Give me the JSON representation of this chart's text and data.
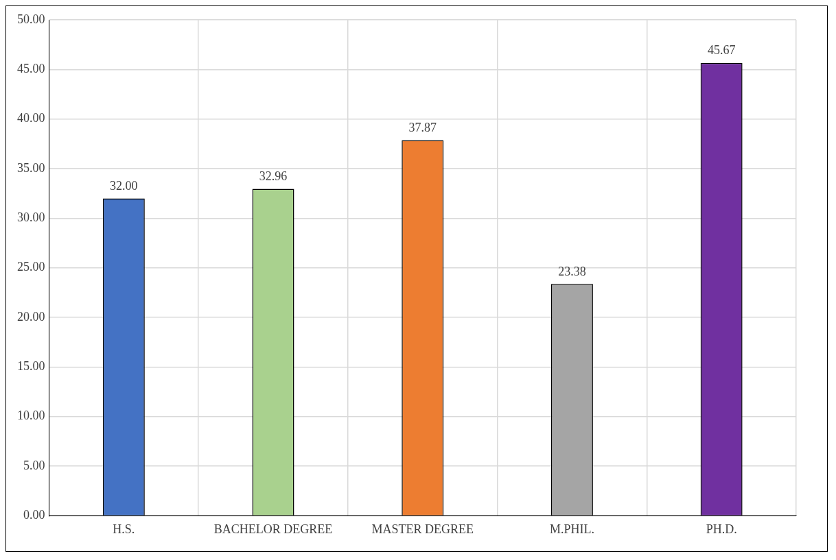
{
  "chart_data": {
    "type": "bar",
    "categories": [
      "H.S.",
      "BACHELOR DEGREE",
      "MASTER DEGREE",
      "M.PHIL.",
      "PH.D."
    ],
    "values": [
      32.0,
      32.96,
      37.87,
      23.38,
      45.67
    ],
    "colors": [
      "#4472c4",
      "#a9d18e",
      "#ed7d31",
      "#a5a5a5",
      "#7030a0"
    ],
    "ylim": [
      0,
      50
    ],
    "yticks": [
      {
        "value": 0,
        "label": "0.00"
      },
      {
        "value": 5,
        "label": "5.00"
      },
      {
        "value": 10,
        "label": "10.00"
      },
      {
        "value": 15,
        "label": "15.00"
      },
      {
        "value": 20,
        "label": "20.00"
      },
      {
        "value": 25,
        "label": "25.00"
      },
      {
        "value": 30,
        "label": "30.00"
      },
      {
        "value": 35,
        "label": "35.00"
      },
      {
        "value": 40,
        "label": "40.00"
      },
      {
        "value": 45,
        "label": "45.00"
      },
      {
        "value": 50,
        "label": "50.00"
      }
    ],
    "value_labels": [
      "32.00",
      "32.96",
      "37.87",
      "23.38",
      "45.67"
    ],
    "grid": true
  }
}
